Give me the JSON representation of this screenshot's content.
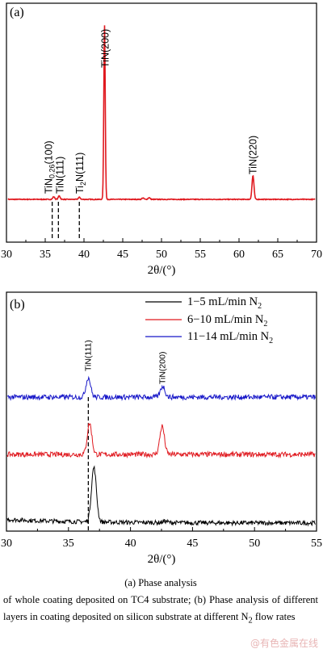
{
  "chart_data": [
    {
      "type": "line",
      "panel_label": "(a)",
      "xlabel": "2θ/(°)",
      "xlim": [
        30,
        70
      ],
      "xticks": [
        30,
        35,
        40,
        45,
        50,
        55,
        60,
        65,
        70
      ],
      "yticks": false,
      "series": [
        {
          "color": "#e0191f",
          "peaks": [
            {
              "x": 36.1,
              "h": 0.015
            },
            {
              "x": 36.8,
              "h": 0.02
            },
            {
              "x": 39.4,
              "h": 0.012
            },
            {
              "x": 42.65,
              "h": 1.0
            },
            {
              "x": 47.6,
              "h": 0.008
            },
            {
              "x": 48.4,
              "h": 0.01
            },
            {
              "x": 61.8,
              "h": 0.136
            }
          ]
        }
      ],
      "annotations": [
        {
          "label": "TiN(200)",
          "x": 42.65
        },
        {
          "label": "TiN(220)",
          "x": 61.8
        },
        {
          "label": "TiN0.26(100)",
          "parts": [
            "TiN",
            "0.26",
            "(100)"
          ],
          "x": 36.1
        },
        {
          "label": "TiN(111)",
          "x": 36.8
        },
        {
          "label": "Ti2N(111)",
          "parts": [
            "Ti",
            "2",
            "N(111)"
          ],
          "x": 39.4
        }
      ],
      "reference_lines": [
        35.9,
        36.7,
        39.4
      ]
    },
    {
      "type": "line",
      "panel_label": "(b)",
      "xlabel": "2θ/(°)",
      "xlim": [
        30,
        55
      ],
      "xticks": [
        30,
        35,
        40,
        45,
        50,
        55
      ],
      "yticks": false,
      "legend_position": "top-right",
      "series": [
        {
          "name": "1−5 mL/min N2",
          "name_parts": [
            "1−5 mL/min N",
            "2"
          ],
          "color": "#000000",
          "peaks": [
            {
              "x": 37.05,
              "h": 0.75
            },
            {
              "x": 42.8,
              "h": 0.02
            }
          ]
        },
        {
          "name": "6−10 mL/min N2",
          "name_parts": [
            "6−10 mL/min N",
            "2"
          ],
          "color": "#e0191f",
          "peaks": [
            {
              "x": 36.7,
              "h": 0.43
            },
            {
              "x": 42.55,
              "h": 0.39
            }
          ]
        },
        {
          "name": "11−14 mL/min N2",
          "name_parts": [
            "11−14 mL/min N",
            "2"
          ],
          "color": "#1616c8",
          "peaks": [
            {
              "x": 36.6,
              "h": 0.27
            },
            {
              "x": 42.6,
              "h": 0.15
            }
          ]
        }
      ],
      "annotations": [
        {
          "label": "TiN(111)",
          "x": 36.6
        },
        {
          "label": "TiN(200)",
          "x": 42.6
        }
      ],
      "reference_lines": [
        36.6
      ]
    }
  ],
  "caption": {
    "line1": "(a) Phase analysis",
    "line2_pre": "of whole coating deposited on TC4 substrate; (b) Phase analysis of different layers in coating deposited on silicon substrate at different N",
    "line2_sub": "2",
    "line2_post": " flow rates"
  },
  "watermark": "@有色金属在线"
}
